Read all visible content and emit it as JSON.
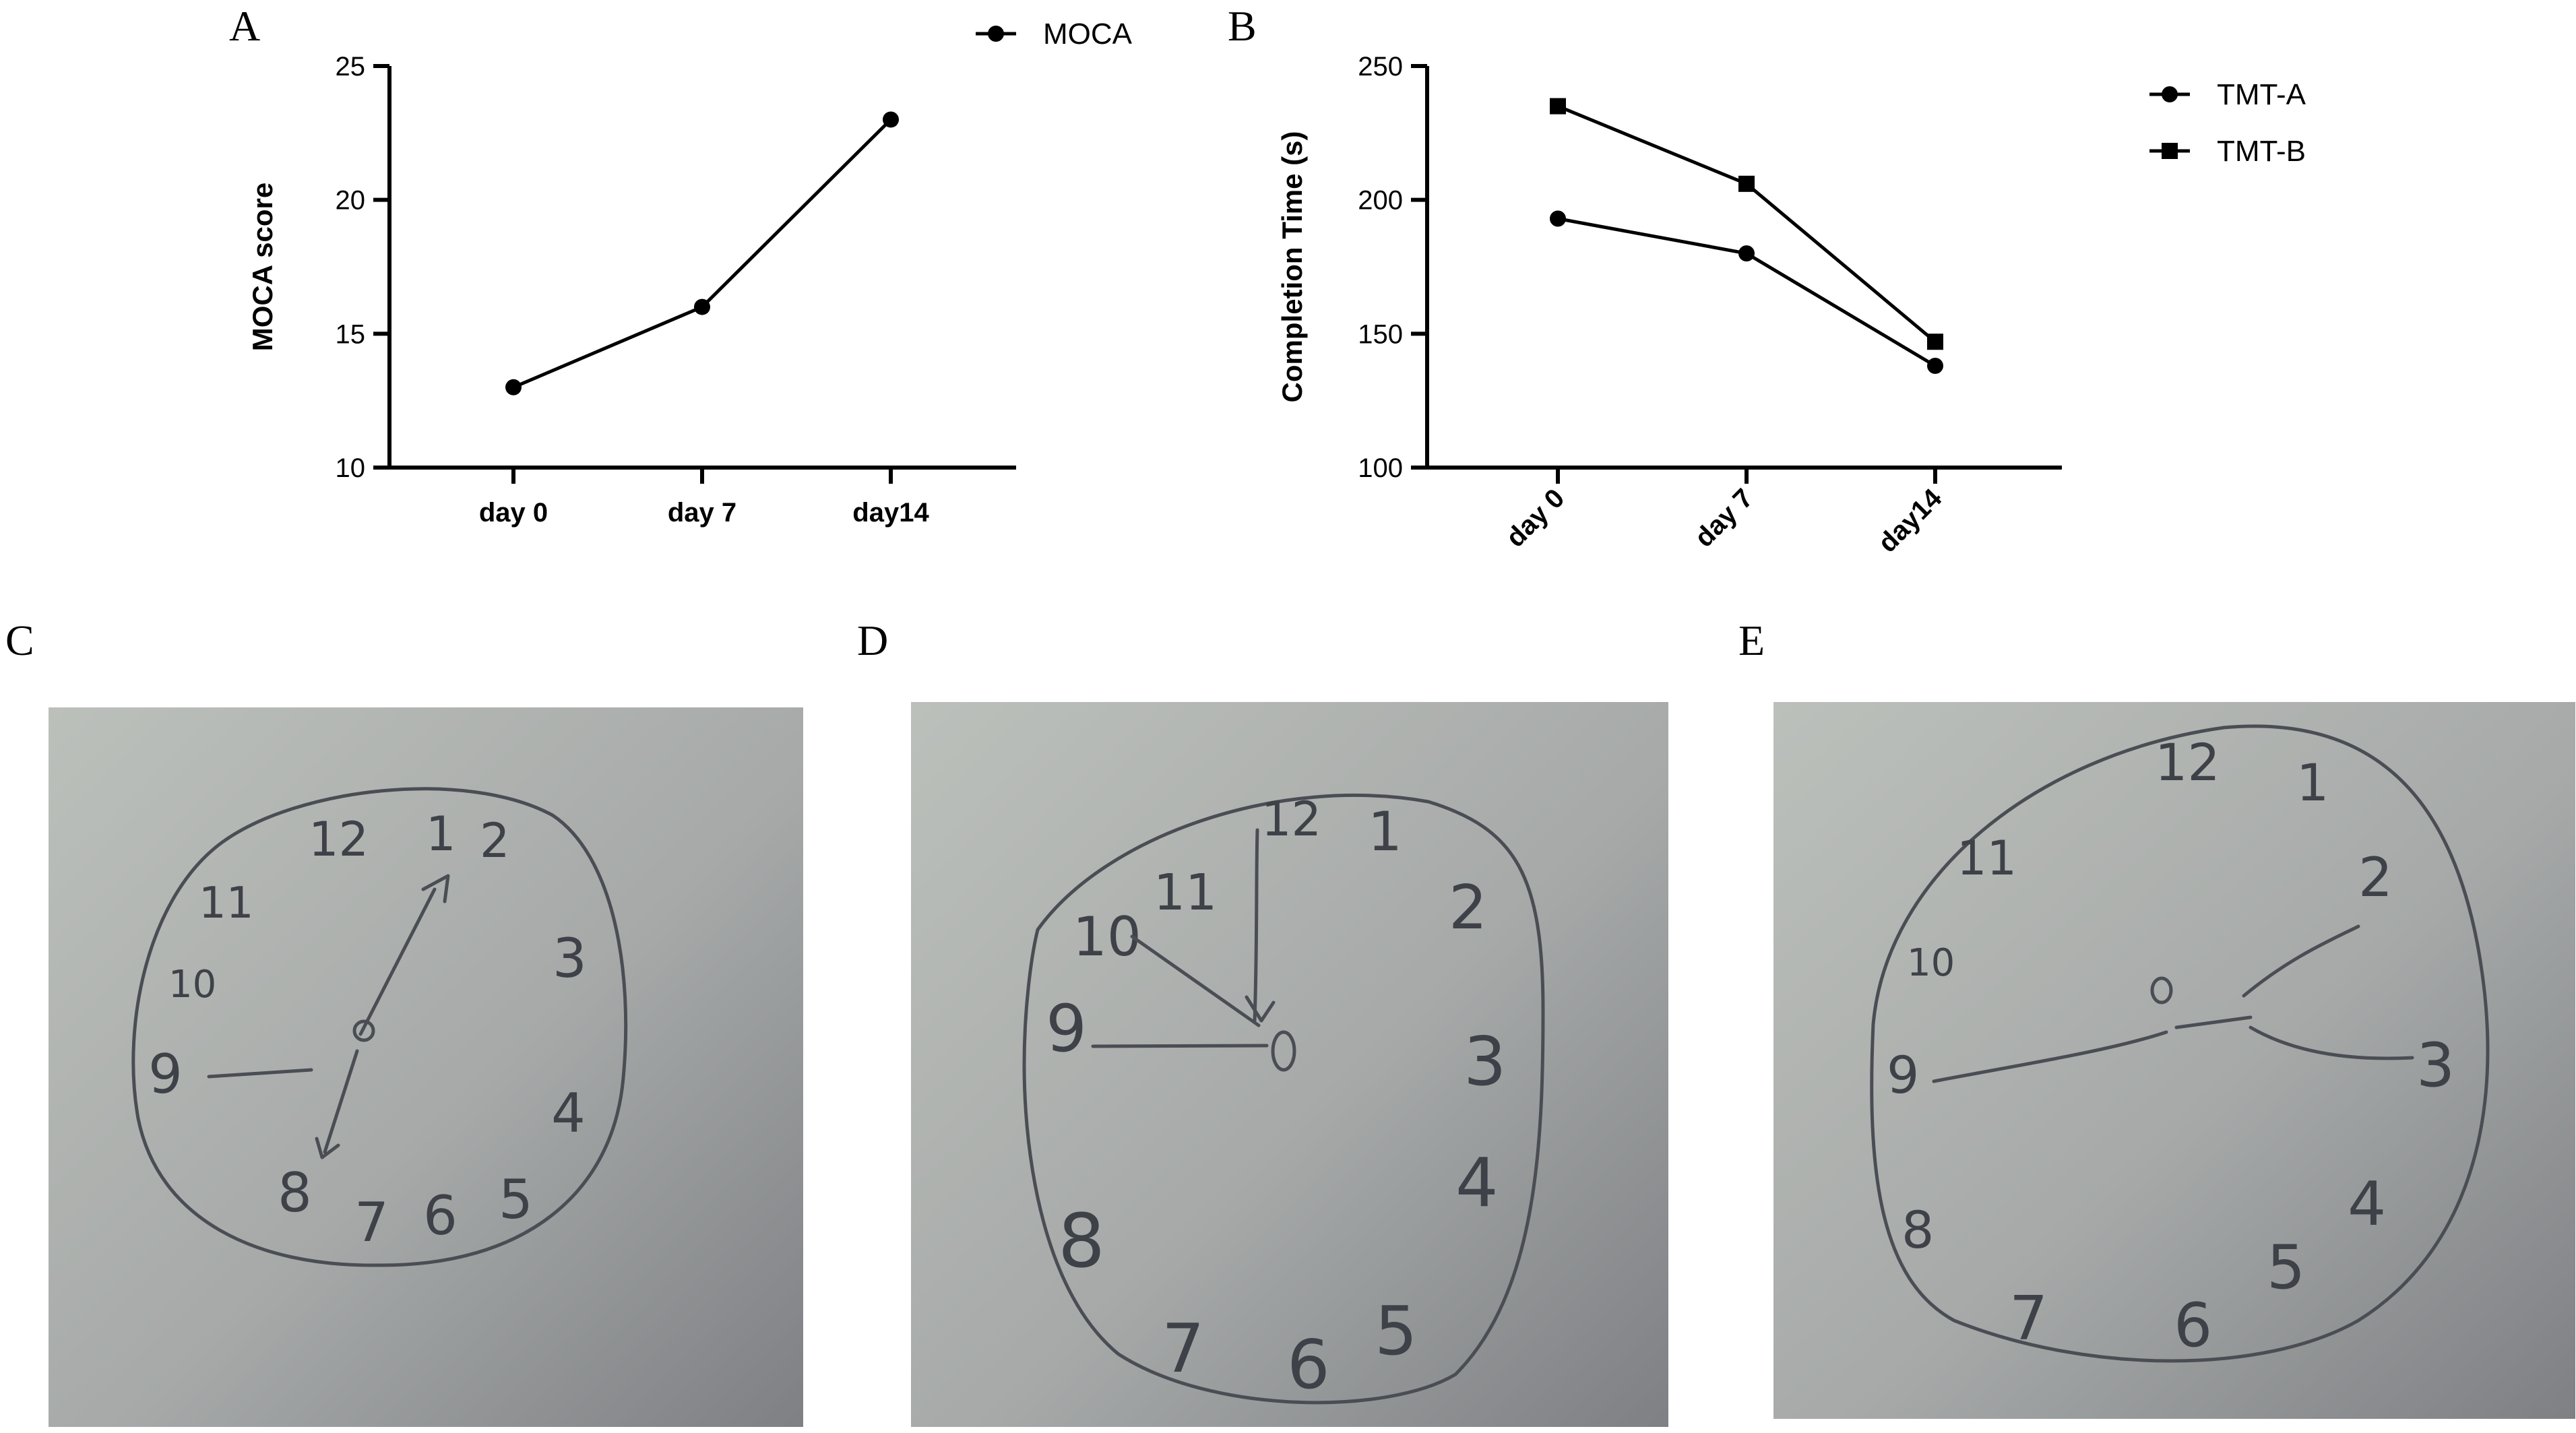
{
  "panels": {
    "A": "A",
    "B": "B",
    "C": "C",
    "D": "D",
    "E": "E"
  },
  "chart_data": [
    {
      "panel": "A",
      "type": "line",
      "categories": [
        "day 0",
        "day 7",
        "day14"
      ],
      "series": [
        {
          "name": "MOCA",
          "marker": "circle",
          "values": [
            13,
            16,
            23
          ]
        }
      ],
      "ylabel": "MOCA  score",
      "xlabel": "",
      "ylim": [
        10,
        25
      ],
      "yticks": [
        10,
        15,
        20,
        25
      ],
      "grid": false,
      "legend": "top-right",
      "xtick_rotation": 0
    },
    {
      "panel": "B",
      "type": "line",
      "categories": [
        "day 0",
        "day 7",
        "day14"
      ],
      "series": [
        {
          "name": "TMT-A",
          "marker": "circle",
          "values": [
            193,
            180,
            138
          ]
        },
        {
          "name": "TMT-B",
          "marker": "square",
          "values": [
            235,
            206,
            147
          ]
        }
      ],
      "ylabel": "Completion Time  (s)",
      "xlabel": "",
      "ylim": [
        100,
        250
      ],
      "yticks": [
        100,
        150,
        200,
        250
      ],
      "grid": false,
      "legend": "right",
      "xtick_rotation": -45
    }
  ],
  "photos": [
    {
      "panel": "C",
      "content": "hand-drawn clock",
      "numerals": [
        "12",
        "1",
        "2",
        "3",
        "4",
        "5",
        "6",
        "7",
        "8",
        "9",
        "10",
        "11"
      ]
    },
    {
      "panel": "D",
      "content": "hand-drawn clock",
      "numerals": [
        "12",
        "1",
        "2",
        "3",
        "4",
        "5",
        "6",
        "7",
        "8",
        "9",
        "10",
        "11"
      ]
    },
    {
      "panel": "E",
      "content": "hand-drawn clock",
      "numerals": [
        "12",
        "1",
        "2",
        "3",
        "4",
        "5",
        "6",
        "7",
        "8",
        "9",
        "10",
        "11"
      ]
    }
  ],
  "colors": {
    "ink": "#000000",
    "paper_light": "#b9bdb8",
    "paper_dark": "#7d7f83",
    "pencil": "#4a4e54"
  }
}
